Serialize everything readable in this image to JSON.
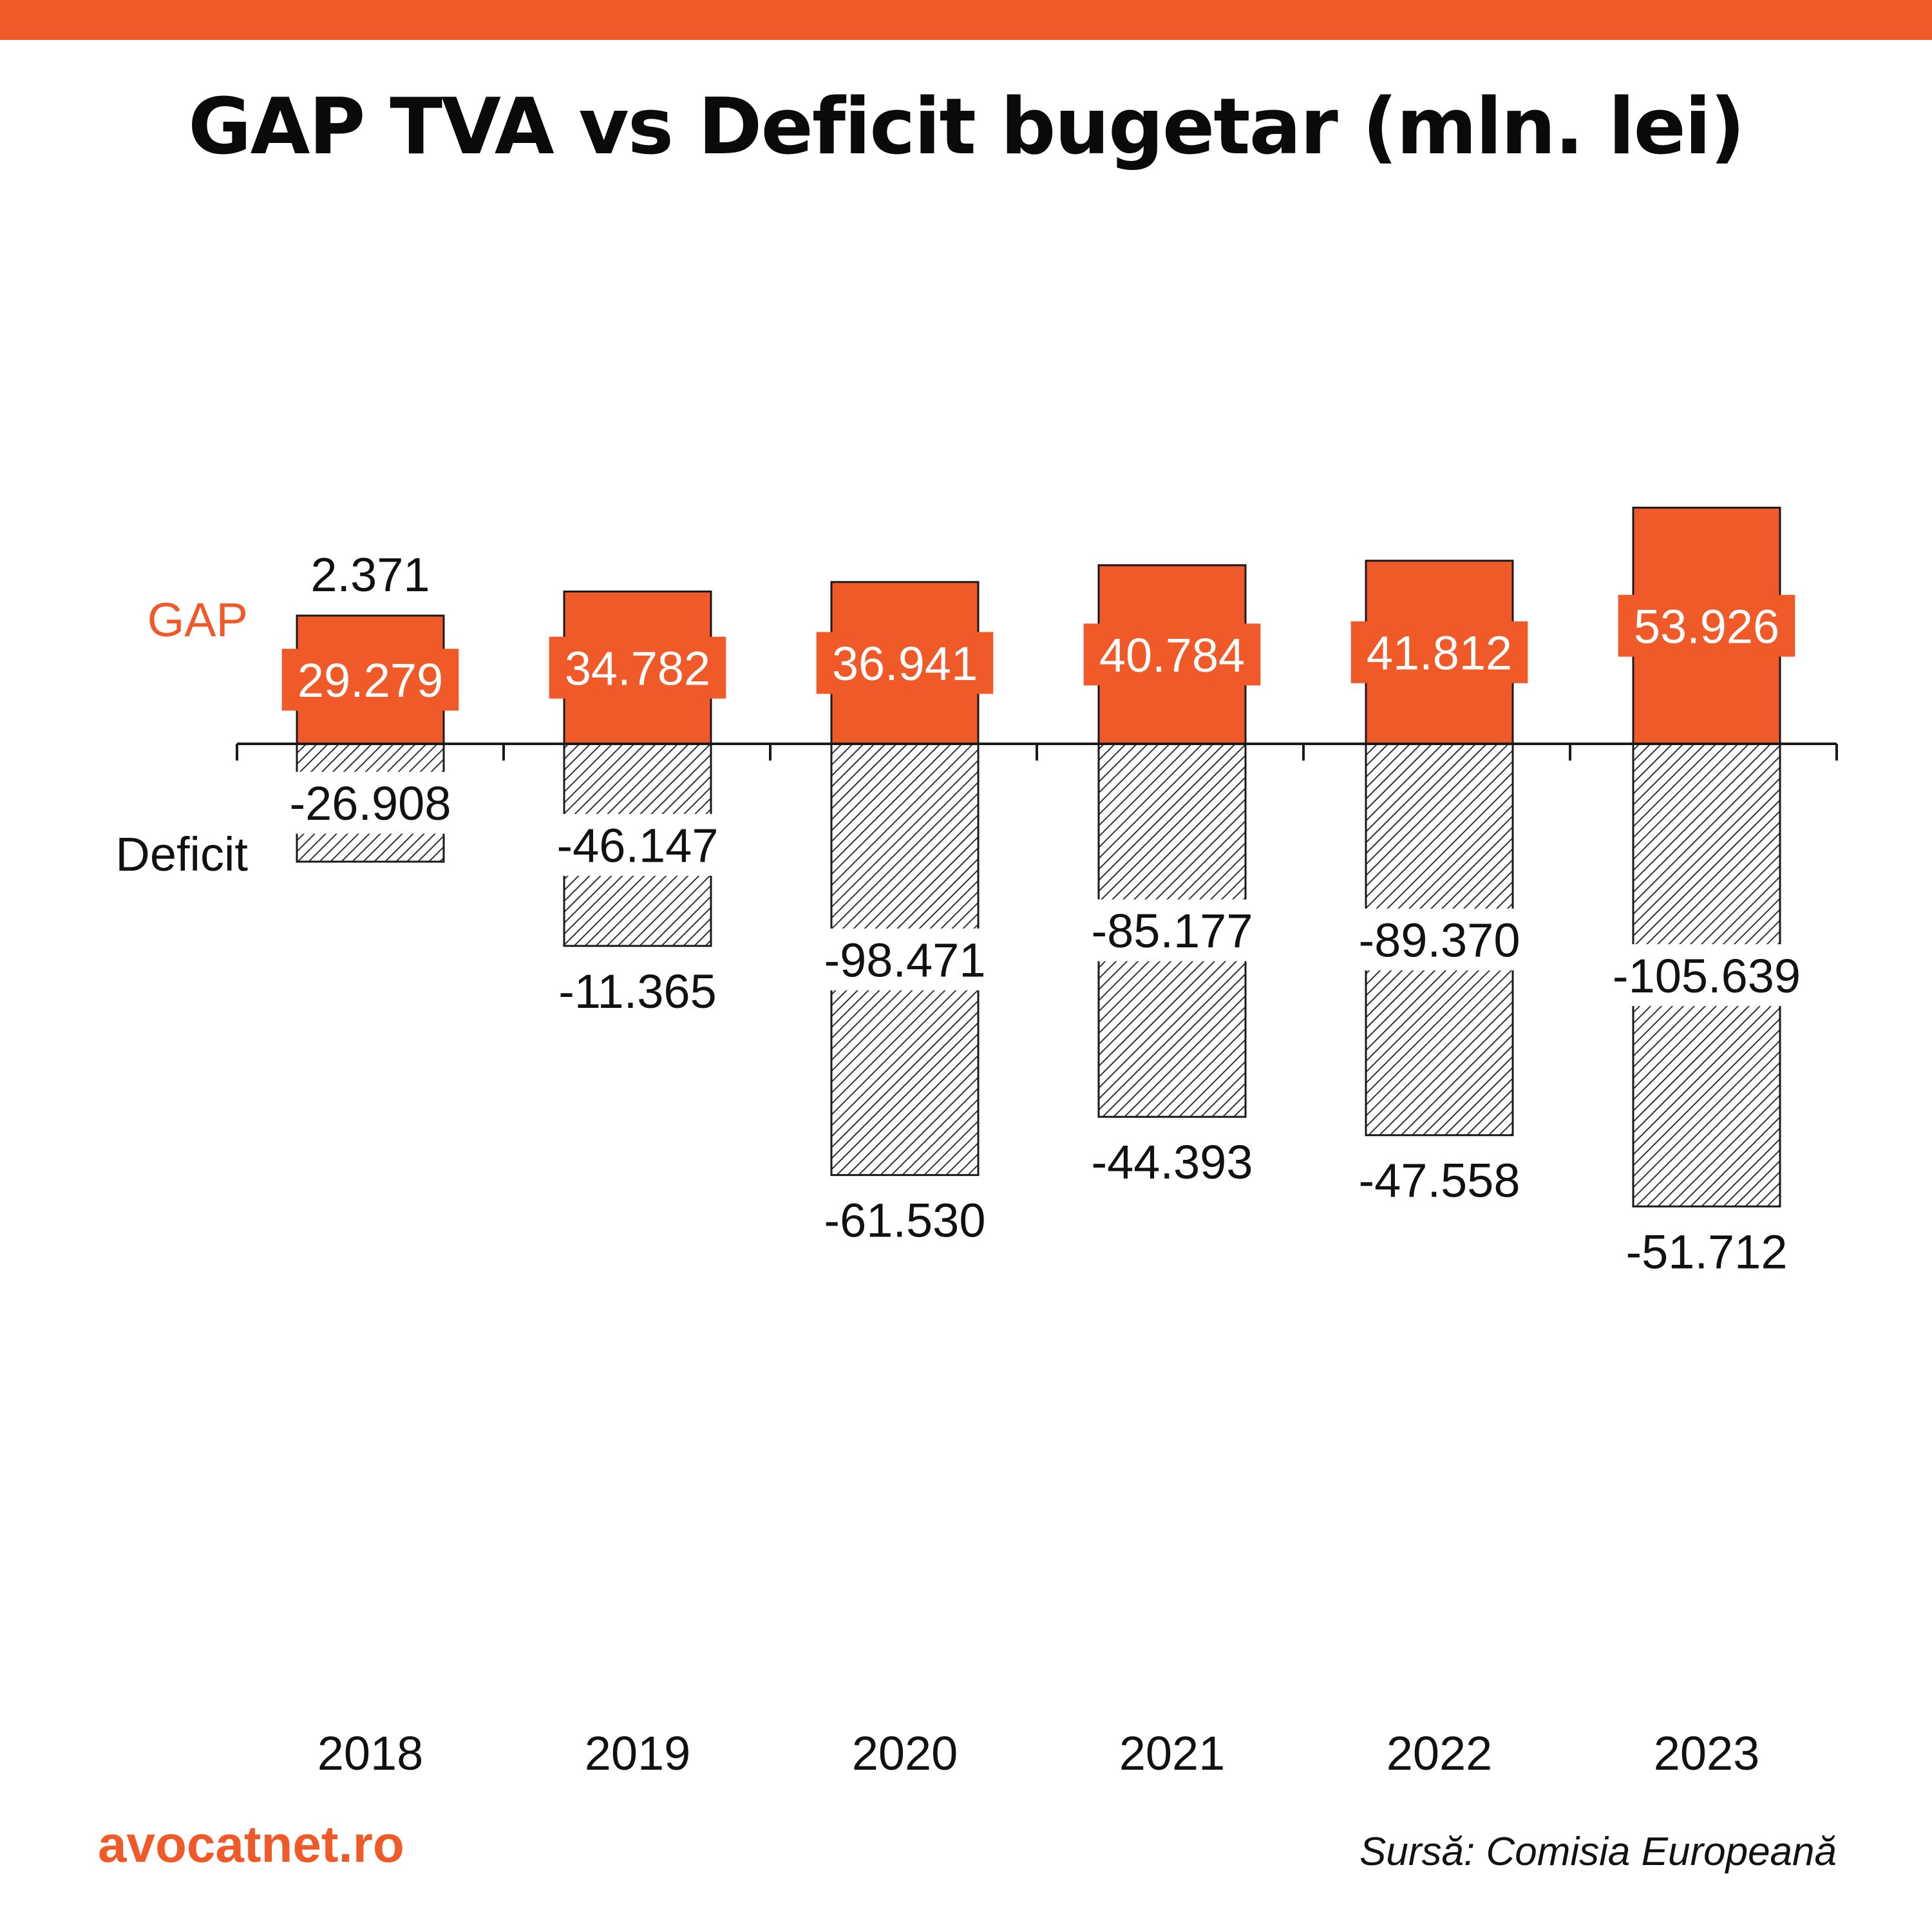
{
  "header": {
    "title": "GAP TVA vs Deficit bugetar (mln. lei)"
  },
  "colors": {
    "accent": "#f05a28",
    "text": "#0a0a0a",
    "hatch": "#333333"
  },
  "footer": {
    "brand": "avocatnet.ro",
    "source": "Sursă: Comisia Europeană"
  },
  "chart_data": {
    "type": "bar",
    "title": "GAP TVA vs Deficit bugetar (mln. lei)",
    "categories": [
      "2018",
      "2019",
      "2020",
      "2021",
      "2022",
      "2023"
    ],
    "series": [
      {
        "name": "GAP",
        "color": "#f05a28",
        "values": [
          29279,
          34782,
          36941,
          40784,
          41812,
          53926
        ],
        "labels": [
          "29.279",
          "34.782",
          "36.941",
          "40.784",
          "41.812",
          "53.926"
        ]
      },
      {
        "name": "Deficit",
        "pattern": "hatched",
        "values": [
          -26908,
          -46147,
          -98471,
          -85177,
          -89370,
          -105639
        ],
        "labels": [
          "-26.908",
          "-46.147",
          "-98.471",
          "-85.177",
          "-89.370",
          "-105.639"
        ]
      }
    ],
    "difference": {
      "values": [
        2371,
        -11365,
        -61530,
        -44393,
        -47558,
        -51712
      ],
      "labels": [
        "2.371",
        "-11.365",
        "-61.530",
        "-44.393",
        "-47.558",
        "-51.712"
      ]
    },
    "ylim": [
      -130000,
      70000
    ],
    "grid": false,
    "legend": "inline-left"
  }
}
